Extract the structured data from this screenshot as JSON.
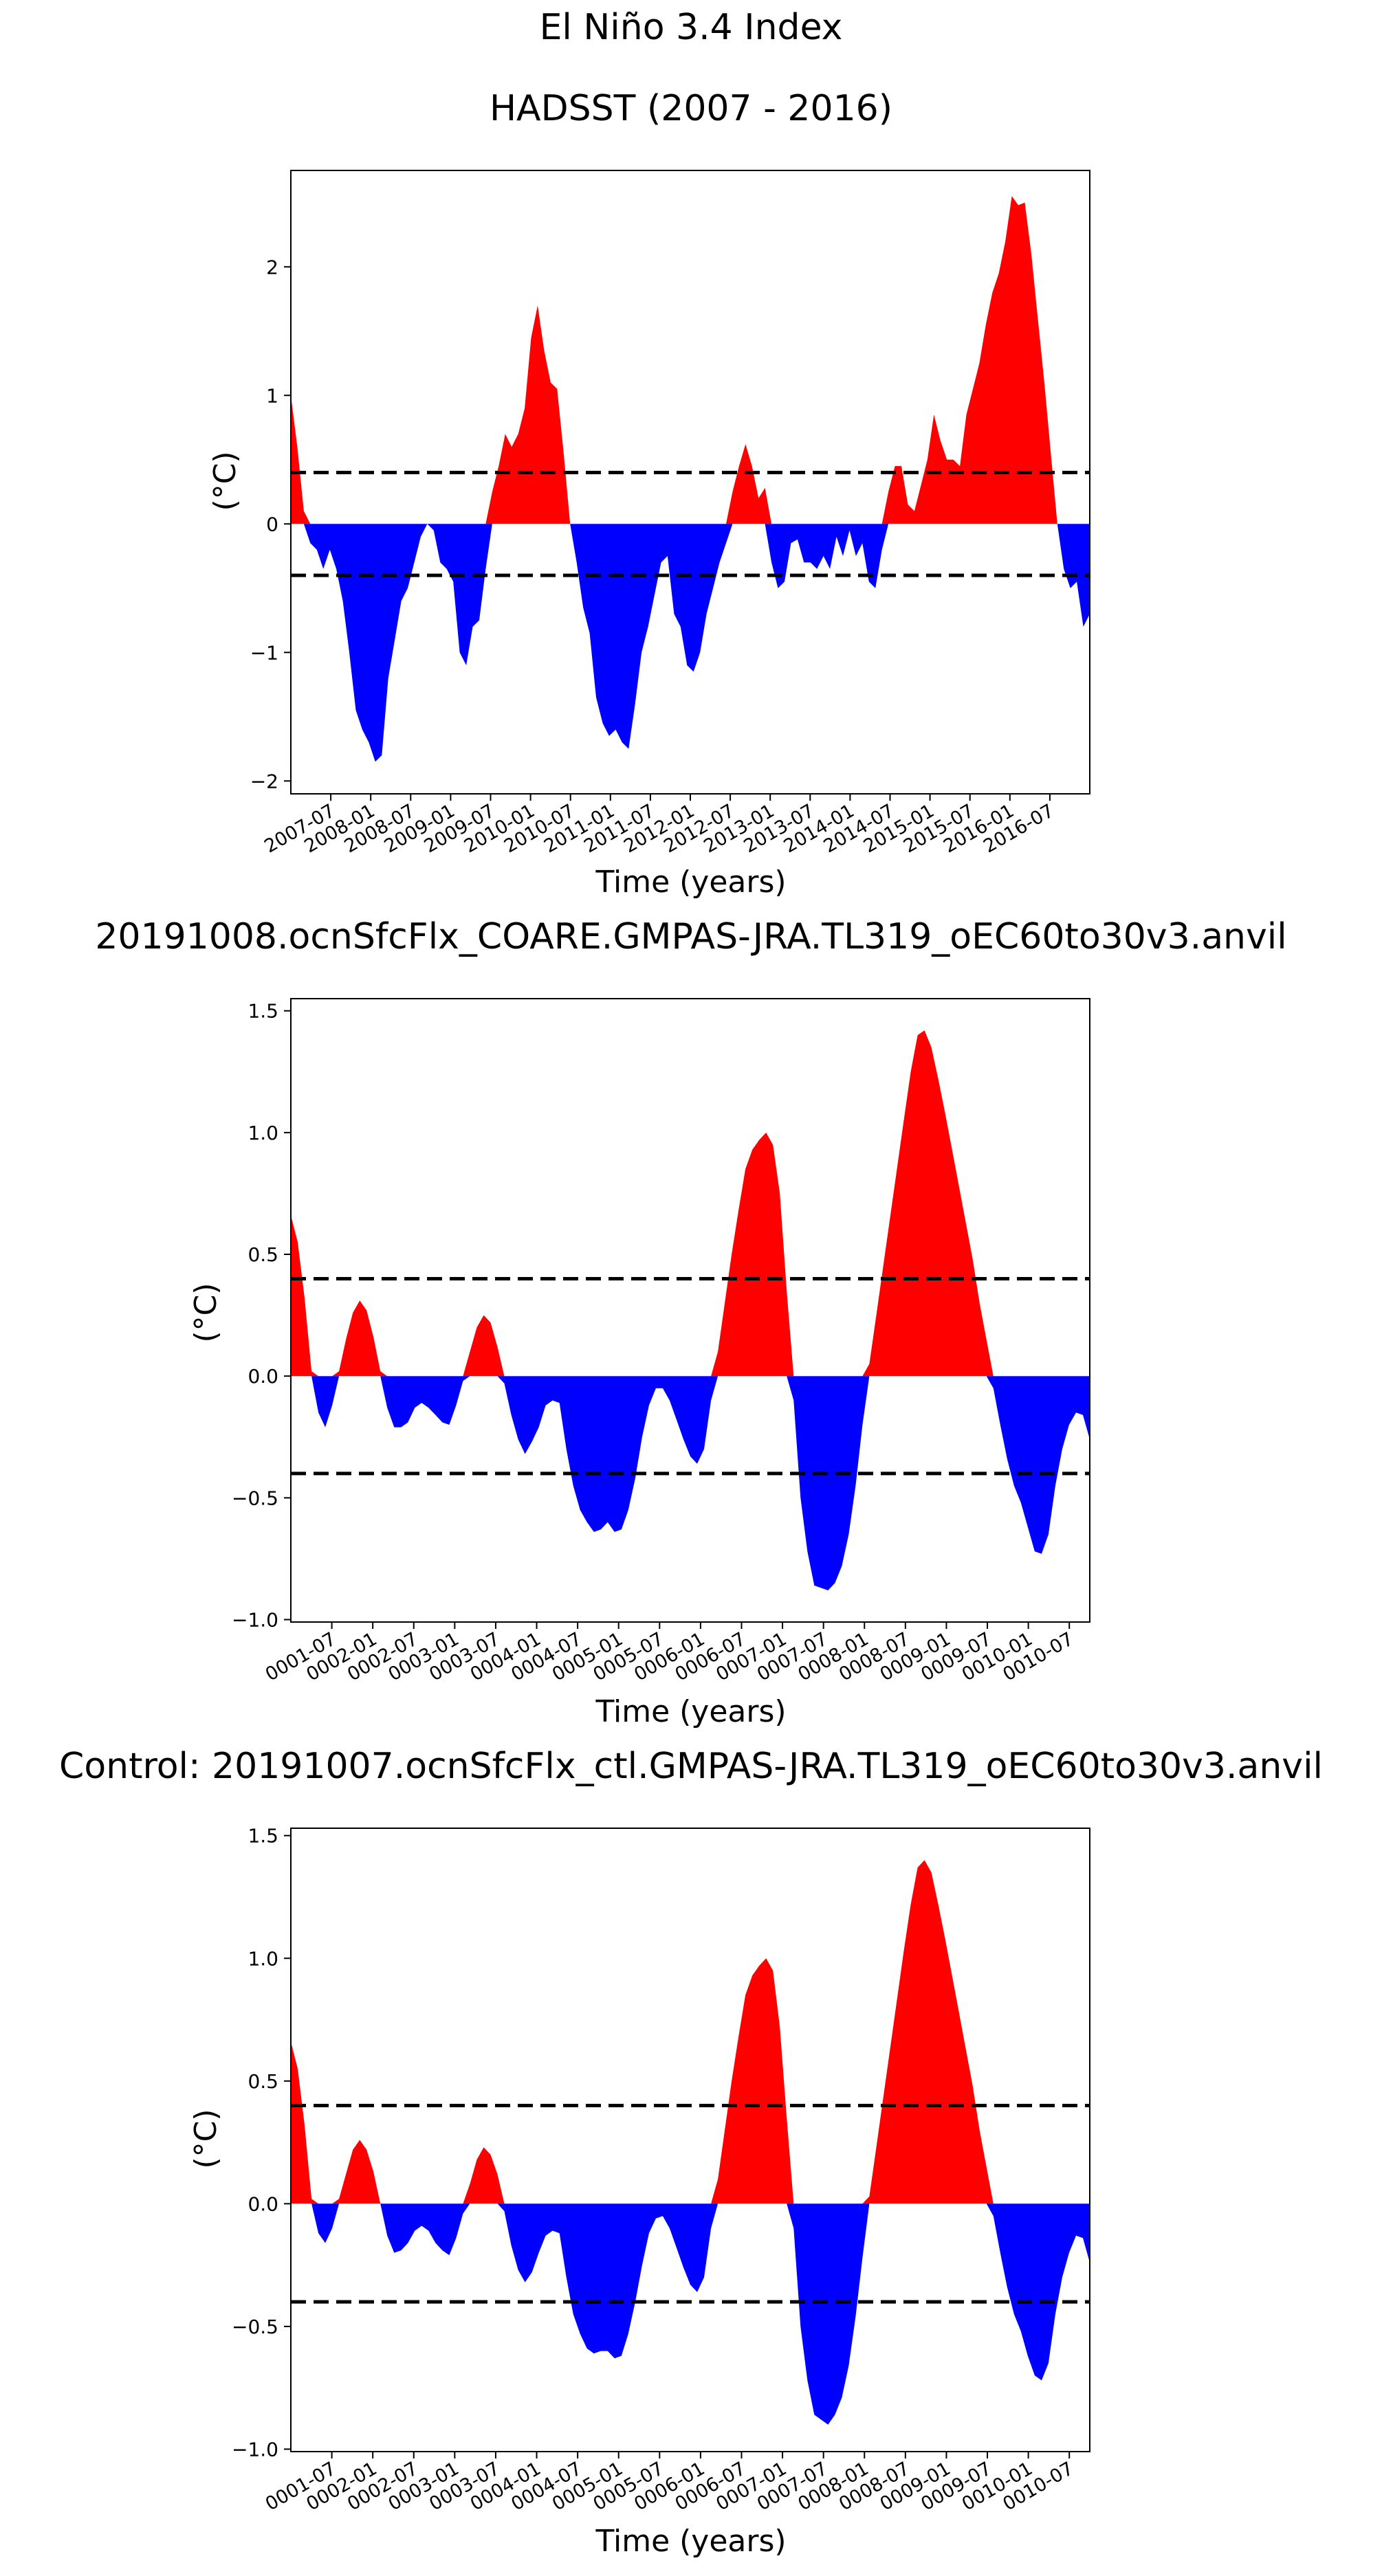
{
  "suptitle": "El Niño 3.4 Index",
  "colors": {
    "positive": "#ff0000",
    "negative": "#0000ff",
    "threshold_line": "#000000"
  },
  "threshold": 0.4,
  "chart_data": [
    {
      "type": "area",
      "title": "HADSST (2007 - 2016)",
      "xlabel": "Time (years)",
      "ylabel": "(°C)",
      "xlim": [
        0,
        120
      ],
      "ylim": [
        -2.1,
        2.75
      ],
      "yticks": [
        -2,
        -1,
        0,
        1,
        2
      ],
      "ytick_labels": [
        "−2",
        "−1",
        "0",
        "1",
        "2"
      ],
      "xticks": [
        6,
        12,
        18,
        24,
        30,
        36,
        42,
        48,
        54,
        60,
        66,
        72,
        78,
        84,
        90,
        96,
        102,
        108,
        114
      ],
      "xtick_labels": [
        "2007-07",
        "2008-01",
        "2008-07",
        "2009-01",
        "2009-07",
        "2010-01",
        "2010-07",
        "2011-01",
        "2011-07",
        "2012-01",
        "2012-07",
        "2013-01",
        "2013-07",
        "2014-01",
        "2014-07",
        "2015-01",
        "2015-07",
        "2016-01",
        "2016-07"
      ],
      "thresholds": [
        0.4,
        -0.4
      ],
      "values": [
        1.0,
        0.6,
        0.1,
        -0.15,
        -0.2,
        -0.35,
        -0.2,
        -0.35,
        -0.6,
        -1.0,
        -1.45,
        -1.6,
        -1.7,
        -1.85,
        -1.8,
        -1.2,
        -0.9,
        -0.6,
        -0.5,
        -0.3,
        -0.1,
        -0.0,
        -0.05,
        -0.3,
        -0.35,
        -0.45,
        -1.0,
        -1.1,
        -0.8,
        -0.75,
        -0.35,
        0.25,
        0.45,
        0.7,
        0.6,
        0.7,
        0.9,
        1.45,
        1.7,
        1.35,
        1.1,
        1.05,
        0.55,
        0.0,
        -0.3,
        -0.65,
        -0.85,
        -1.35,
        -1.55,
        -1.65,
        -1.6,
        -1.7,
        -1.75,
        -1.4,
        -1.0,
        -0.8,
        -0.55,
        -0.3,
        -0.25,
        -0.7,
        -0.8,
        -1.1,
        -1.15,
        -1.0,
        -0.7,
        -0.5,
        -0.3,
        -0.15,
        0.25,
        0.45,
        0.62,
        0.45,
        0.2,
        0.28,
        -0.3,
        -0.5,
        -0.45,
        -0.15,
        -0.12,
        -0.3,
        -0.3,
        -0.35,
        -0.25,
        -0.35,
        -0.1,
        -0.25,
        -0.05,
        -0.25,
        -0.15,
        -0.45,
        -0.5,
        -0.2,
        0.25,
        0.45,
        0.45,
        0.15,
        0.1,
        0.3,
        0.5,
        0.85,
        0.65,
        0.5,
        0.5,
        0.45,
        0.85,
        1.05,
        1.25,
        1.55,
        1.8,
        1.95,
        2.2,
        2.55,
        2.48,
        2.5,
        2.1,
        1.6,
        1.1,
        0.55,
        0.0,
        -0.35,
        -0.5,
        -0.45,
        -0.8,
        -0.7
      ]
    },
    {
      "type": "area",
      "title": "20191008.ocnSfcFlx_COARE.GMPAS-JRA.TL319_oEC60to30v3.anvil",
      "xlabel": "Time (years)",
      "ylabel": "(°C)",
      "xlim": [
        0,
        117
      ],
      "ylim": [
        -1.01,
        1.55
      ],
      "yticks": [
        -1.0,
        -0.5,
        0.0,
        0.5,
        1.0,
        1.5
      ],
      "ytick_labels": [
        "−1.0",
        "−0.5",
        "0.0",
        "0.5",
        "1.0",
        "1.5"
      ],
      "xticks": [
        6,
        12,
        18,
        24,
        30,
        36,
        42,
        48,
        54,
        60,
        66,
        72,
        78,
        84,
        90,
        96,
        102,
        108,
        114
      ],
      "xtick_labels": [
        "0001-07",
        "0002-01",
        "0002-07",
        "0003-01",
        "0003-07",
        "0004-01",
        "0004-07",
        "0005-01",
        "0005-07",
        "0006-01",
        "0006-07",
        "0007-01",
        "0007-07",
        "0008-01",
        "0008-07",
        "0009-01",
        "0009-07",
        "0010-01",
        "0010-07"
      ],
      "thresholds": [
        0.4,
        -0.4
      ],
      "values": [
        0.66,
        0.55,
        0.32,
        0.02,
        -0.15,
        -0.21,
        -0.12,
        0.02,
        0.15,
        0.26,
        0.31,
        0.27,
        0.16,
        0.02,
        -0.13,
        -0.21,
        -0.21,
        -0.19,
        -0.13,
        -0.11,
        -0.13,
        -0.16,
        -0.19,
        -0.2,
        -0.12,
        -0.02,
        0.1,
        0.2,
        0.25,
        0.22,
        0.12,
        -0.03,
        -0.16,
        -0.26,
        -0.32,
        -0.27,
        -0.21,
        -0.12,
        -0.1,
        -0.11,
        -0.3,
        -0.45,
        -0.55,
        -0.6,
        -0.64,
        -0.63,
        -0.6,
        -0.64,
        -0.63,
        -0.55,
        -0.42,
        -0.25,
        -0.12,
        -0.05,
        -0.05,
        -0.1,
        -0.18,
        -0.26,
        -0.33,
        -0.36,
        -0.3,
        -0.1,
        0.1,
        0.3,
        0.5,
        0.68,
        0.85,
        0.93,
        0.97,
        1.0,
        0.95,
        0.75,
        0.35,
        -0.1,
        -0.5,
        -0.72,
        -0.86,
        -0.87,
        -0.88,
        -0.85,
        -0.78,
        -0.65,
        -0.45,
        -0.2,
        0.05,
        0.25,
        0.45,
        0.65,
        0.85,
        1.05,
        1.25,
        1.4,
        1.42,
        1.35,
        1.22,
        1.08,
        0.93,
        0.78,
        0.63,
        0.48,
        0.3,
        0.15,
        -0.05,
        -0.2,
        -0.34,
        -0.45,
        -0.52,
        -0.62,
        -0.72,
        -0.73,
        -0.65,
        -0.45,
        -0.3,
        -0.2,
        -0.15,
        -0.16,
        -0.26
      ]
    },
    {
      "type": "area",
      "title": "Control: 20191007.ocnSfcFlx_ctl.GMPAS-JRA.TL319_oEC60to30v3.anvil",
      "xlabel": "Time (years)",
      "ylabel": "(°C)",
      "xlim": [
        0,
        117
      ],
      "ylim": [
        -1.01,
        1.53
      ],
      "yticks": [
        -1.0,
        -0.5,
        0.0,
        0.5,
        1.0,
        1.5
      ],
      "ytick_labels": [
        "−1.0",
        "−0.5",
        "0.0",
        "0.5",
        "1.0",
        "1.5"
      ],
      "xticks": [
        6,
        12,
        18,
        24,
        30,
        36,
        42,
        48,
        54,
        60,
        66,
        72,
        78,
        84,
        90,
        96,
        102,
        108,
        114
      ],
      "xtick_labels": [
        "0001-07",
        "0002-01",
        "0002-07",
        "0003-01",
        "0003-07",
        "0004-01",
        "0004-07",
        "0005-01",
        "0005-07",
        "0006-01",
        "0006-07",
        "0007-01",
        "0007-07",
        "0008-01",
        "0008-07",
        "0009-01",
        "0009-07",
        "0010-01",
        "0010-07"
      ],
      "thresholds": [
        0.4,
        -0.4
      ],
      "values": [
        0.66,
        0.55,
        0.32,
        0.02,
        -0.12,
        -0.16,
        -0.1,
        0.02,
        0.12,
        0.22,
        0.26,
        0.22,
        0.13,
        0.0,
        -0.13,
        -0.2,
        -0.19,
        -0.16,
        -0.11,
        -0.09,
        -0.11,
        -0.16,
        -0.19,
        -0.21,
        -0.14,
        -0.04,
        0.08,
        0.18,
        0.23,
        0.2,
        0.12,
        -0.03,
        -0.17,
        -0.27,
        -0.32,
        -0.28,
        -0.2,
        -0.13,
        -0.11,
        -0.12,
        -0.3,
        -0.45,
        -0.53,
        -0.59,
        -0.61,
        -0.6,
        -0.6,
        -0.63,
        -0.62,
        -0.53,
        -0.4,
        -0.25,
        -0.12,
        -0.06,
        -0.05,
        -0.1,
        -0.18,
        -0.26,
        -0.33,
        -0.36,
        -0.3,
        -0.1,
        0.1,
        0.3,
        0.5,
        0.68,
        0.85,
        0.93,
        0.97,
        1.0,
        0.95,
        0.72,
        0.35,
        -0.1,
        -0.5,
        -0.72,
        -0.86,
        -0.88,
        -0.9,
        -0.86,
        -0.79,
        -0.66,
        -0.46,
        -0.22,
        0.03,
        0.23,
        0.43,
        0.63,
        0.83,
        1.03,
        1.22,
        1.37,
        1.4,
        1.35,
        1.22,
        1.08,
        0.93,
        0.78,
        0.63,
        0.48,
        0.3,
        0.15,
        -0.05,
        -0.2,
        -0.34,
        -0.45,
        -0.52,
        -0.62,
        -0.7,
        -0.72,
        -0.65,
        -0.45,
        -0.3,
        -0.2,
        -0.13,
        -0.14,
        -0.24
      ]
    }
  ]
}
